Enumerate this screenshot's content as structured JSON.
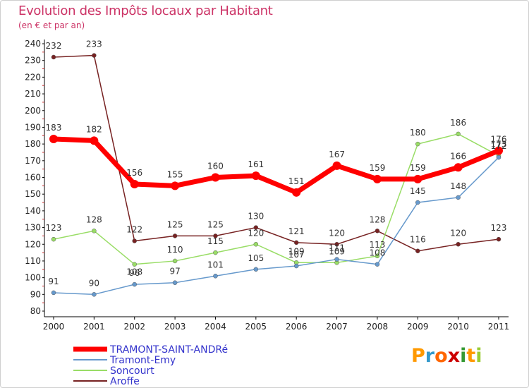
{
  "title": "Evolution des Impôts locaux par Habitant",
  "subtitle": "(en € et par an)",
  "brand": {
    "text": "Proxiti",
    "letters": [
      {
        "ch": "P",
        "color": "#ff9900"
      },
      {
        "ch": "r",
        "color": "#3399cc"
      },
      {
        "ch": "o",
        "color": "#ff6600"
      },
      {
        "ch": "x",
        "color": "#cc0000"
      },
      {
        "ch": "i",
        "color": "#339933"
      },
      {
        "ch": "t",
        "color": "#ff9900"
      },
      {
        "ch": "i",
        "color": "#99cc33"
      }
    ]
  },
  "chart_data": {
    "type": "line",
    "title": "Evolution des Impôts locaux par Habitant",
    "subtitle": "(en € et par an)",
    "xlabel": "",
    "ylabel": "",
    "x": [
      "2000",
      "2001",
      "2002",
      "2003",
      "2004",
      "2005",
      "2006",
      "2007",
      "2008",
      "2009",
      "2010",
      "2011"
    ],
    "ylim": [
      80,
      240
    ],
    "yticks": [
      80,
      90,
      100,
      110,
      120,
      130,
      140,
      150,
      160,
      170,
      180,
      190,
      200,
      210,
      220,
      230,
      240
    ],
    "grid": false,
    "legend_position": "bottom-left",
    "series": [
      {
        "name": "TRAMONT-SAINT-ANDRé",
        "color": "#ff0000",
        "values": [
          183,
          182,
          156,
          155,
          160,
          161,
          151,
          167,
          159,
          159,
          166,
          176
        ]
      },
      {
        "name": "Tramont-Emy",
        "color": "#6699cc",
        "values": [
          91,
          90,
          96,
          97,
          101,
          105,
          107,
          111,
          108,
          145,
          148,
          172
        ]
      },
      {
        "name": "Soncourt",
        "color": "#99dd66",
        "values": [
          123,
          128,
          108,
          110,
          115,
          120,
          109,
          109,
          113,
          180,
          186,
          173
        ]
      },
      {
        "name": "Aroffe",
        "color": "#772222",
        "values": [
          232,
          233,
          122,
          125,
          125,
          130,
          121,
          120,
          128,
          116,
          120,
          123
        ]
      }
    ],
    "data_labels": [
      [
        183,
        182,
        156,
        155,
        160,
        161,
        151,
        167,
        159,
        159,
        166,
        176
      ],
      [
        91,
        90,
        96,
        97,
        101,
        105,
        107,
        111,
        108,
        145,
        148,
        172
      ],
      [
        123,
        128,
        108,
        110,
        115,
        120,
        109,
        109,
        113,
        180,
        186,
        173
      ],
      [
        232,
        233,
        122,
        125,
        125,
        130,
        121,
        120,
        128,
        116,
        120,
        123
      ]
    ]
  }
}
